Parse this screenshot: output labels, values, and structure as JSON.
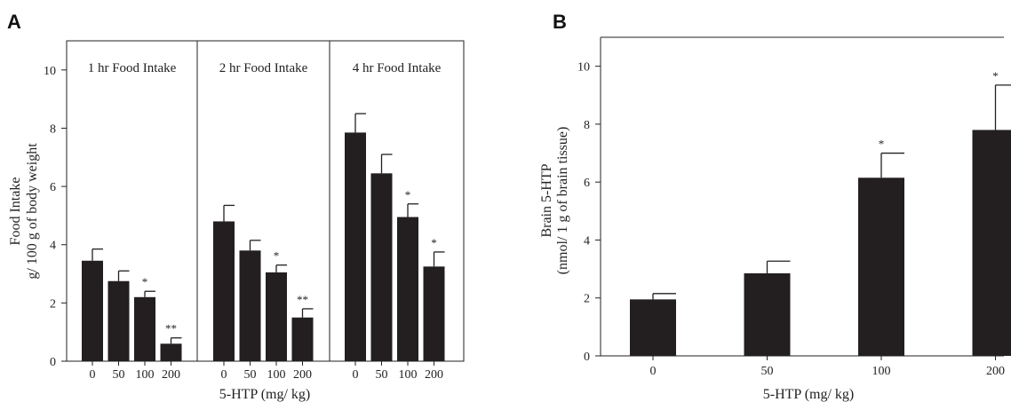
{
  "chart_data": [
    {
      "type": "bar",
      "panel_label": "A",
      "ylabel_lines": [
        "Food Intake",
        "g/ 100 g of body weight"
      ],
      "xlabel": "5-HTP (mg/ kg)",
      "ylim": [
        0,
        11
      ],
      "yticks": [
        0,
        2,
        4,
        6,
        8,
        10
      ],
      "subplots": [
        {
          "title": "1 hr Food Intake",
          "categories": [
            "0",
            "50",
            "100",
            "200"
          ],
          "values": [
            3.45,
            2.75,
            2.2,
            0.6
          ],
          "errors": [
            0.4,
            0.35,
            0.2,
            0.2
          ],
          "significance": [
            "",
            "",
            "*",
            "**"
          ]
        },
        {
          "title": "2 hr Food Intake",
          "categories": [
            "0",
            "50",
            "100",
            "200"
          ],
          "values": [
            4.8,
            3.8,
            3.05,
            1.5
          ],
          "errors": [
            0.55,
            0.35,
            0.25,
            0.3
          ],
          "significance": [
            "",
            "",
            "*",
            "**"
          ]
        },
        {
          "title": "4 hr Food Intake",
          "categories": [
            "0",
            "50",
            "100",
            "200"
          ],
          "values": [
            7.85,
            6.45,
            4.95,
            3.25
          ],
          "errors": [
            0.65,
            0.65,
            0.45,
            0.5
          ],
          "significance": [
            "",
            "",
            "*",
            "*"
          ]
        }
      ]
    },
    {
      "type": "bar",
      "panel_label": "B",
      "ylabel_lines": [
        "Brain 5-HTP",
        "(nmol/ 1 g of brain tissue)"
      ],
      "xlabel": "5-HTP (mg/ kg)",
      "ylim": [
        0,
        11
      ],
      "yticks": [
        0,
        2,
        4,
        6,
        8,
        10
      ],
      "categories": [
        "0",
        "50",
        "100",
        "200"
      ],
      "values": [
        1.95,
        2.85,
        6.15,
        7.8
      ],
      "errors": [
        0.2,
        0.42,
        0.85,
        1.55
      ],
      "significance": [
        "",
        "",
        "*",
        "*"
      ]
    }
  ]
}
